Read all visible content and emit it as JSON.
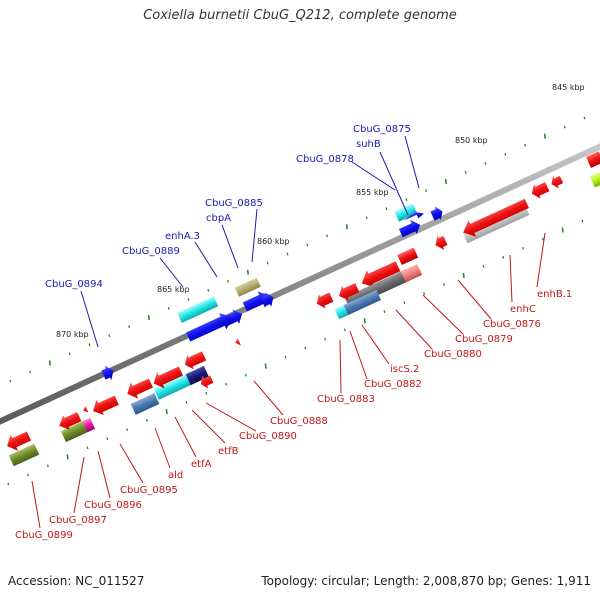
{
  "title": "Coxiella burnetii CbuG_Q212, complete genome",
  "footer": {
    "accession": "Accession: NC_011527",
    "stats": "Topology: circular; Length: 2,008,870 bp; Genes: 1,911"
  },
  "scale_labels": [
    "845 kbp",
    "850 kbp",
    "855 kbp",
    "860 kbp",
    "865 kbp",
    "870 kbp"
  ],
  "top_strand_genes": [
    "CbuG_0875",
    "suhB",
    "CbuG_0878",
    "CbuG_0885",
    "cbpA",
    "enhA.3",
    "CbuG_0889",
    "CbuG_0894"
  ],
  "bottom_strand_genes": [
    "enhB.1",
    "enhC",
    "CbuG_0876",
    "CbuG_0879",
    "CbuG_0880",
    "iscS.2",
    "CbuG_0882",
    "CbuG_0883",
    "CbuG_0888",
    "CbuG_0890",
    "etfB",
    "etfA",
    "ald",
    "CbuG_0895",
    "CbuG_0896",
    "CbuG_0897",
    "CbuG_0899"
  ],
  "colors": {
    "backbone": "#8a8a8a",
    "top_label": "#1a1ab3",
    "bottom_label": "#c01818",
    "tick": "#2a8a2a"
  }
}
